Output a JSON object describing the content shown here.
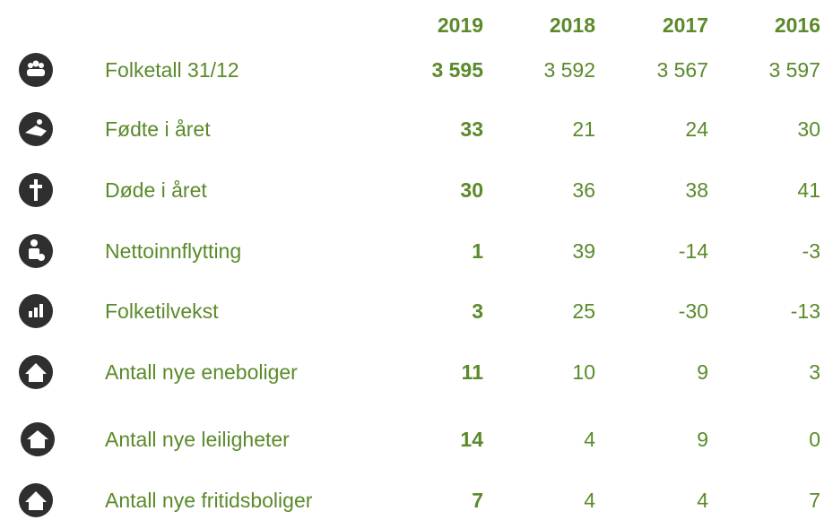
{
  "table": {
    "header": [
      "2019",
      "2018",
      "2017",
      "2016"
    ],
    "rows": [
      {
        "label": "Folketall 31/12",
        "values": [
          "3 595",
          "3 592",
          "3 567",
          "3 597"
        ]
      },
      {
        "label": "Fødte i året",
        "values": [
          "33",
          "21",
          "24",
          "30"
        ]
      },
      {
        "label": "Døde i året",
        "values": [
          "30",
          "36",
          "38",
          "41"
        ]
      },
      {
        "label": "Nettoinnflytting",
        "values": [
          "1",
          "39",
          "-14",
          "-3"
        ]
      },
      {
        "label": "Folketilvekst",
        "values": [
          "3",
          "25",
          "-30",
          "-13"
        ]
      },
      {
        "label": "Antall nye eneboliger",
        "values": [
          "11",
          "10",
          "9",
          "3"
        ]
      },
      {
        "label": "Antall nye leiligheter",
        "values": [
          "14",
          "4",
          "9",
          "0"
        ]
      },
      {
        "label": "Antall nye fritidsboliger",
        "values": [
          "7",
          "4",
          "4",
          "7"
        ]
      }
    ]
  }
}
